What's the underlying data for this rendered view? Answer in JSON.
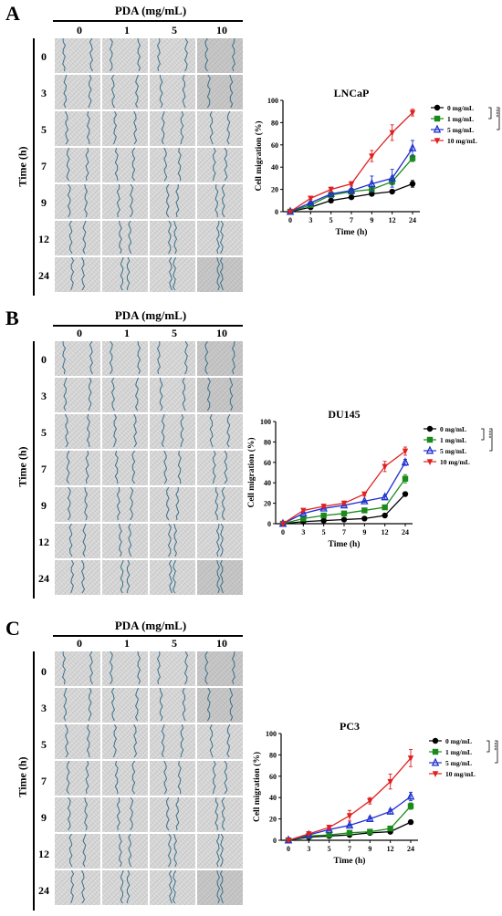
{
  "panels": [
    {
      "label": "A",
      "header": "PDA (mg/mL)",
      "columns": [
        "0",
        "1",
        "5",
        "10"
      ],
      "time_title": "Time (h)",
      "rows": [
        "0",
        "3",
        "5",
        "7",
        "9",
        "12",
        "24"
      ]
    },
    {
      "label": "B",
      "header": "PDA (mg/mL)",
      "columns": [
        "0",
        "1",
        "5",
        "10"
      ],
      "time_title": "Time (h)",
      "rows": [
        "0",
        "3",
        "5",
        "7",
        "9",
        "12",
        "24"
      ]
    },
    {
      "label": "C",
      "header": "PDA (mg/mL)",
      "columns": [
        "0",
        "1",
        "5",
        "10"
      ],
      "time_title": "Time (h)",
      "rows": [
        "0",
        "3",
        "5",
        "7",
        "9",
        "12",
        "24"
      ]
    }
  ],
  "colors": {
    "0 mg/mL": "#000000",
    "1 mg/mL": "#1a8a1a",
    "5 mg/mL": "#1f2fd0",
    "10 mg/mL": "#e02020",
    "scratch_line": "#3a6f8a"
  },
  "chart_data": [
    {
      "type": "line",
      "title": "LNCaP",
      "xlabel": "Time (h)",
      "ylabel": "Cell migration (%)",
      "categories": [
        "0",
        "3",
        "5",
        "7",
        "9",
        "12",
        "24"
      ],
      "ylim": [
        0,
        100
      ],
      "yticks": [
        0,
        20,
        40,
        60,
        80,
        100
      ],
      "legend_position": "right",
      "significance": [
        "***",
        "***",
        "***"
      ],
      "series": [
        {
          "name": "0 mg/mL",
          "marker": "circle",
          "values": [
            0,
            4,
            10,
            13,
            16,
            18,
            25
          ],
          "errors": [
            0,
            1,
            1,
            1,
            1,
            1,
            3
          ]
        },
        {
          "name": "1 mg/mL",
          "marker": "square",
          "values": [
            0,
            6,
            15,
            18,
            20,
            27,
            48
          ],
          "errors": [
            0,
            1,
            2,
            2,
            2,
            3,
            3
          ]
        },
        {
          "name": "5 mg/mL",
          "marker": "triangle-up",
          "values": [
            0,
            8,
            16,
            19,
            25,
            30,
            57
          ],
          "errors": [
            0,
            1,
            2,
            2,
            7,
            8,
            7
          ]
        },
        {
          "name": "10 mg/mL",
          "marker": "triangle-down",
          "values": [
            0,
            12,
            20,
            25,
            50,
            71,
            89
          ],
          "errors": [
            0,
            1,
            2,
            2,
            5,
            7,
            3
          ]
        }
      ]
    },
    {
      "type": "line",
      "title": "DU145",
      "xlabel": "Time (h)",
      "ylabel": "Cell migration (%)",
      "categories": [
        "0",
        "3",
        "5",
        "7",
        "9",
        "12",
        "24"
      ],
      "ylim": [
        0,
        100
      ],
      "yticks": [
        0,
        20,
        40,
        60,
        80,
        100
      ],
      "legend_position": "right",
      "significance": [
        "***",
        "***",
        "***"
      ],
      "series": [
        {
          "name": "0 mg/mL",
          "marker": "circle",
          "values": [
            0,
            2,
            3,
            4,
            5,
            8,
            29
          ],
          "errors": [
            0,
            0.5,
            0.5,
            0.5,
            0.5,
            1,
            2
          ]
        },
        {
          "name": "1 mg/mL",
          "marker": "square",
          "values": [
            0,
            5,
            8,
            10,
            13,
            16,
            44
          ],
          "errors": [
            0,
            1,
            1,
            1,
            1,
            2,
            4
          ]
        },
        {
          "name": "5 mg/mL",
          "marker": "triangle-up",
          "values": [
            0,
            10,
            15,
            18,
            22,
            26,
            60
          ],
          "errors": [
            0,
            1,
            1,
            1,
            1,
            2,
            3
          ]
        },
        {
          "name": "10 mg/mL",
          "marker": "triangle-down",
          "values": [
            0,
            13,
            17,
            20,
            29,
            56,
            71
          ],
          "errors": [
            0,
            1,
            1,
            1,
            2,
            5,
            4
          ]
        }
      ]
    },
    {
      "type": "line",
      "title": "PC3",
      "xlabel": "Time (h)",
      "ylabel": "Cell migration (%)",
      "categories": [
        "0",
        "3",
        "5",
        "7",
        "9",
        "12",
        "24"
      ],
      "ylim": [
        0,
        100
      ],
      "yticks": [
        0,
        20,
        40,
        60,
        80,
        100
      ],
      "legend_position": "right",
      "significance": [
        "***",
        "***",
        "***"
      ],
      "series": [
        {
          "name": "0 mg/mL",
          "marker": "circle",
          "values": [
            0,
            3,
            4,
            5,
            7,
            8,
            17
          ],
          "errors": [
            0,
            0.5,
            0.5,
            0.5,
            0.5,
            1,
            2
          ]
        },
        {
          "name": "1 mg/mL",
          "marker": "square",
          "values": [
            0,
            4,
            5,
            7,
            8,
            11,
            32
          ],
          "errors": [
            0,
            0.5,
            0.5,
            1,
            1,
            1,
            3
          ]
        },
        {
          "name": "5 mg/mL",
          "marker": "triangle-up",
          "values": [
            0,
            5,
            10,
            14,
            20,
            27,
            41
          ],
          "errors": [
            0,
            1,
            1,
            1,
            2,
            2,
            4
          ]
        },
        {
          "name": "10 mg/mL",
          "marker": "triangle-down",
          "values": [
            0,
            6,
            12,
            23,
            37,
            55,
            77
          ],
          "errors": [
            0,
            1,
            2,
            5,
            3,
            7,
            8
          ]
        }
      ]
    }
  ]
}
